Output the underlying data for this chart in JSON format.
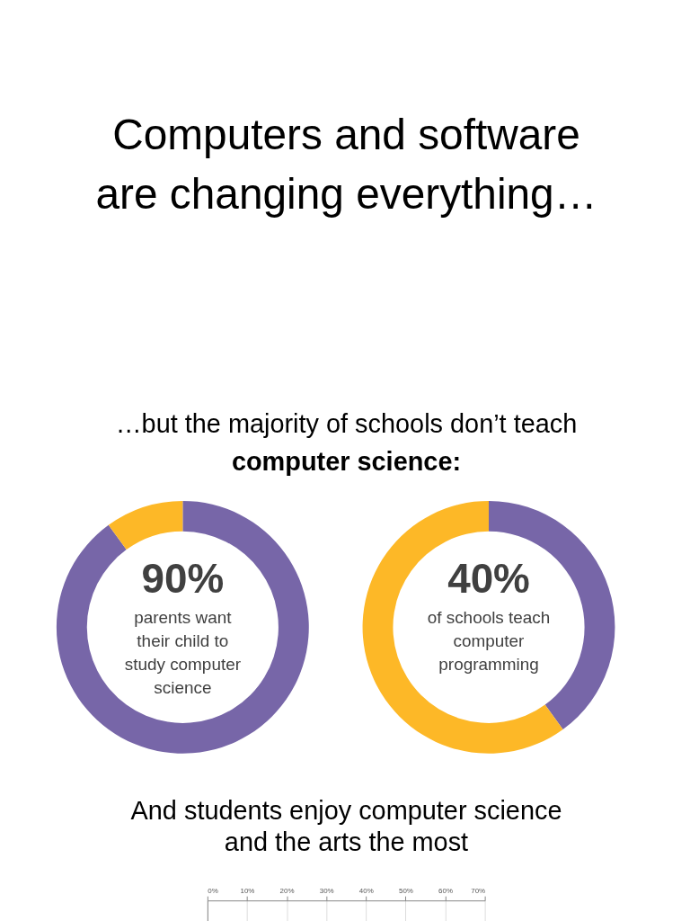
{
  "chart_data": [
    {
      "type": "donut",
      "title": "Computers and software are changing everything…",
      "subtitle": "…but the majority of schools don’t teach computer science:",
      "categories": [
        null,
        null
      ],
      "values": [
        90,
        10
      ],
      "colors": [
        "#7766a8",
        "#fdb827"
      ],
      "annotations": [
        "90%",
        "parents want their child to study computer science"
      ]
    },
    {
      "type": "donut",
      "categories": [
        null,
        null
      ],
      "values": [
        40,
        60
      ],
      "colors": [
        "#7766a8",
        "#fdb827"
      ],
      "annotations": [
        "40%",
        "of schools teach computer programming"
      ]
    },
    {
      "type": "bar",
      "orientation": "horizontal",
      "title": "And students enjoy computer science and the arts the most",
      "categories": [
        null
      ],
      "values": [
        null
      ],
      "xlim": [
        0,
        70
      ],
      "xticks": [
        {
          "value": 0,
          "label": "0%"
        },
        {
          "value": 10,
          "label": "10%"
        },
        {
          "value": 20,
          "label": "20%"
        },
        {
          "value": 30,
          "label": "30%"
        },
        {
          "value": 40,
          "label": "40%"
        },
        {
          "value": 50,
          "label": "50%"
        },
        {
          "value": 60,
          "label": "60%"
        },
        {
          "value": 70,
          "label": "70%"
        }
      ],
      "grid": "x"
    }
  ]
}
